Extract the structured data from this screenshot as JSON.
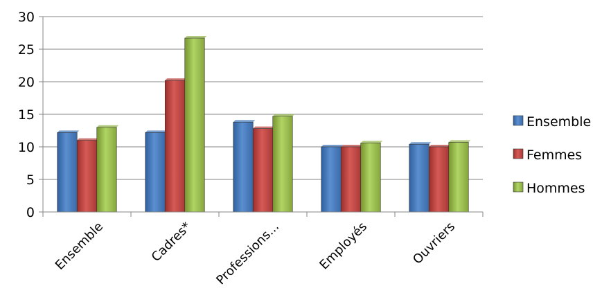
{
  "chart_data": {
    "type": "bar",
    "title": "",
    "xlabel": "",
    "ylabel": "",
    "categories": [
      "Ensemble",
      "Cadres*",
      "Professions...",
      "Employés",
      "Ouvriers"
    ],
    "ylim": [
      0,
      30
    ],
    "yticks": [
      0,
      5,
      10,
      15,
      20,
      25,
      30
    ],
    "grid": true,
    "legend_position": "right",
    "series": [
      {
        "name": "Ensemble",
        "color": "#4a7ebb",
        "values": [
          12.2,
          12.2,
          13.8,
          10.0,
          10.4
        ]
      },
      {
        "name": "Femmes",
        "color": "#be4b48",
        "values": [
          11.0,
          20.2,
          12.8,
          10.0,
          10.0
        ]
      },
      {
        "name": "Hommes",
        "color": "#98b954",
        "values": [
          13.0,
          26.7,
          14.7,
          10.6,
          10.7
        ]
      }
    ]
  }
}
